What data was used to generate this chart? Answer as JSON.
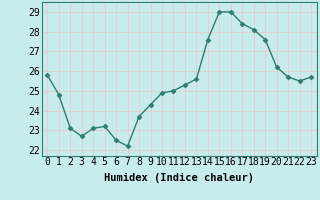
{
  "x": [
    0,
    1,
    2,
    3,
    4,
    5,
    6,
    7,
    8,
    9,
    10,
    11,
    12,
    13,
    14,
    15,
    16,
    17,
    18,
    19,
    20,
    21,
    22,
    23
  ],
  "y": [
    25.8,
    24.8,
    23.1,
    22.7,
    23.1,
    23.2,
    22.5,
    22.2,
    23.7,
    24.3,
    24.9,
    25.0,
    25.3,
    25.6,
    27.6,
    29.0,
    29.0,
    28.4,
    28.1,
    27.6,
    26.2,
    25.7,
    25.5,
    25.7
  ],
  "line_color": "#2e7d6e",
  "marker": "D",
  "marker_size": 2.5,
  "bg_color": "#c8ecec",
  "grid_color": "#e8c8c8",
  "xlabel": "Humidex (Indice chaleur)",
  "ylabel_ticks": [
    22,
    23,
    24,
    25,
    26,
    27,
    28,
    29
  ],
  "xlim": [
    -0.5,
    23.5
  ],
  "ylim": [
    21.7,
    29.5
  ],
  "xlabel_fontsize": 7.5,
  "tick_fontsize": 7,
  "spine_color": "#2e7d6e"
}
